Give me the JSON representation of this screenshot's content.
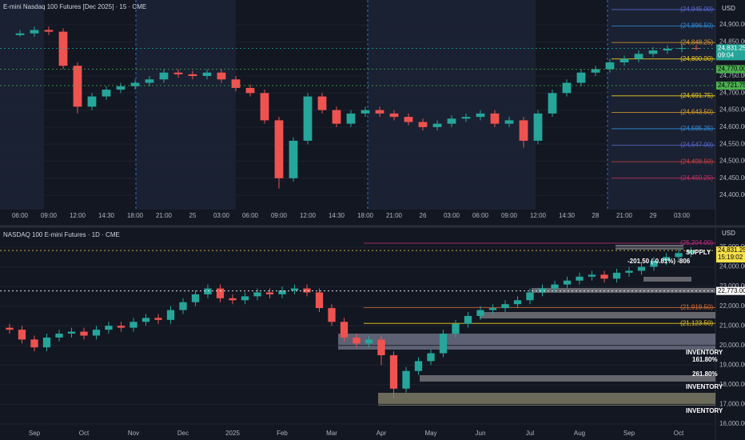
{
  "chart_data": [
    {
      "type": "candlestick",
      "title": "E-mini Nasdaq 100 Futures [Dec 2025] · 15 · CME",
      "currency": "USD",
      "categories": [
        "06:00",
        null,
        "09:00",
        null,
        "12:00",
        null,
        "14:30",
        null,
        "18:00",
        null,
        "21:00",
        null,
        "25",
        null,
        "03:00",
        null,
        "06:00",
        null,
        "09:00",
        null,
        "12:00",
        null,
        "14:30",
        null,
        "18:00",
        null,
        "21:00",
        null,
        "26",
        null,
        "03:00",
        null,
        "06:00",
        null,
        "09:00",
        null,
        "12:00",
        null,
        "14:30",
        null,
        "28",
        null,
        "21:00",
        null,
        "29",
        null,
        "03:00",
        null
      ],
      "open": [
        24870,
        24875,
        24885,
        24880,
        24780,
        24660,
        24690,
        24710,
        24720,
        24730,
        24740,
        24760,
        24755,
        24750,
        24760,
        24740,
        24715,
        24700,
        24620,
        24450,
        24560,
        24690,
        24650,
        24610,
        24640,
        24650,
        24640,
        24630,
        24615,
        24600,
        24610,
        24625,
        24630,
        24640,
        24610,
        24620,
        24560,
        24640,
        24700,
        24730,
        24760,
        24770,
        24790,
        24800,
        24815,
        24825,
        24830,
        24832
      ],
      "high": [
        24885,
        24895,
        24895,
        24890,
        24790,
        24700,
        24720,
        24730,
        24740,
        24750,
        24770,
        24770,
        24765,
        24770,
        24770,
        24750,
        24725,
        24710,
        24630,
        24570,
        24700,
        24700,
        24660,
        24650,
        24660,
        24660,
        24650,
        24640,
        24625,
        24620,
        24635,
        24640,
        24650,
        24650,
        24630,
        24630,
        24650,
        24710,
        24740,
        24770,
        24780,
        24800,
        24810,
        24825,
        24835,
        24840,
        24842,
        24842
      ],
      "low": [
        24865,
        24865,
        24870,
        24770,
        24640,
        24650,
        24680,
        24700,
        24710,
        24720,
        24730,
        24745,
        24740,
        24740,
        24730,
        24705,
        24690,
        24610,
        24420,
        24440,
        24550,
        24640,
        24600,
        24600,
        24630,
        24630,
        24620,
        24605,
        24590,
        24590,
        24600,
        24615,
        24620,
        24600,
        24600,
        24540,
        24550,
        24630,
        24690,
        24720,
        24750,
        24760,
        24780,
        24790,
        24805,
        24815,
        24820,
        24825
      ],
      "close": [
        24875,
        24885,
        24880,
        24780,
        24660,
        24690,
        24710,
        24720,
        24730,
        24740,
        24760,
        24755,
        24750,
        24760,
        24740,
        24715,
        24700,
        24620,
        24450,
        24560,
        24690,
        24650,
        24610,
        24640,
        24650,
        24640,
        24630,
        24615,
        24600,
        24610,
        24625,
        24630,
        24640,
        24610,
        24620,
        24560,
        24640,
        24700,
        24730,
        24760,
        24770,
        24790,
        24800,
        24815,
        24825,
        24830,
        24832,
        24831.25
      ],
      "up_color": "#26a69a",
      "down_color": "#ef5350",
      "ylim": [
        24358,
        24973
      ],
      "yticks": [
        {
          "value": 24400,
          "label": "24,400.00"
        },
        {
          "value": 24450,
          "label": "24,450.00"
        },
        {
          "value": 24500,
          "label": "24,500.00"
        },
        {
          "value": 24550,
          "label": "24,550.00"
        },
        {
          "value": 24600,
          "label": "24,600.00"
        },
        {
          "value": 24650,
          "label": "24,650.00"
        },
        {
          "value": 24700,
          "label": "24,700.00"
        },
        {
          "value": 24750,
          "label": "24,750.00"
        },
        {
          "value": 24850,
          "label": "24,850.00"
        },
        {
          "value": 24900,
          "label": "24,900.00"
        }
      ],
      "levels": [
        {
          "value": 24945,
          "label": "(24,945.00)",
          "color": "#5b6bd6"
        },
        {
          "value": 24896.5,
          "label": "(24,896.50)",
          "color": "#2f8fe0"
        },
        {
          "value": 24848.25,
          "label": "(24,848.25)",
          "color": "#e0a030"
        },
        {
          "value": 24800,
          "label": "(24,800.00)",
          "color": "#f0d020"
        },
        {
          "value": 24691.75,
          "label": "(24,691.75)",
          "color": "#f0d020"
        },
        {
          "value": 24643.5,
          "label": "(24,643.50)",
          "color": "#e0a030"
        },
        {
          "value": 24595.25,
          "label": "(24,595.25)",
          "color": "#2f8fe0"
        },
        {
          "value": 24547,
          "label": "(24,547.00)",
          "color": "#5b6bd6"
        },
        {
          "value": 24498.5,
          "label": "(24,498.50)",
          "color": "#d04040"
        },
        {
          "value": 24450.25,
          "label": "(24,450.25)",
          "color": "#c03060"
        }
      ],
      "badges": [
        {
          "value": 24831.25,
          "label": "24,831.25",
          "countdown": "09:04",
          "color": "#26a69a",
          "text_color": "#ffffff"
        },
        {
          "value": 24770,
          "label": "24,770.00",
          "color": "#4caf50",
          "text_color": "#000000"
        },
        {
          "value": 24721.75,
          "label": "24,721.75",
          "color": "#4caf50",
          "text_color": "#000000"
        }
      ],
      "grid": true
    },
    {
      "type": "candlestick",
      "title": "NASDAQ 100 E-mini Futures · 1D · CME",
      "currency": "USD",
      "categories": [
        null,
        null,
        "Sep",
        null,
        null,
        null,
        "Oct",
        null,
        null,
        null,
        "Nov",
        null,
        null,
        null,
        "Dec",
        null,
        null,
        null,
        "2025",
        null,
        null,
        null,
        "Feb",
        null,
        null,
        null,
        "Mar",
        null,
        null,
        null,
        "Apr",
        null,
        null,
        null,
        "May",
        null,
        null,
        null,
        "Jun",
        null,
        null,
        null,
        "Jul",
        null,
        null,
        null,
        "Aug",
        null,
        null,
        null,
        "Sep",
        null,
        null,
        null,
        "Oct",
        null
      ],
      "open": [
        20900,
        20800,
        20300,
        19900,
        20400,
        20600,
        20700,
        20500,
        20800,
        21000,
        20900,
        21200,
        21400,
        21300,
        21800,
        22200,
        22600,
        22900,
        22400,
        22300,
        22500,
        22700,
        22600,
        22800,
        22900,
        22700,
        21900,
        21200,
        20400,
        20100,
        20300,
        19500,
        17800,
        18700,
        19200,
        19600,
        20600,
        21100,
        21500,
        21800,
        21900,
        22100,
        22300,
        22700,
        22900,
        23100,
        23300,
        23500,
        23600,
        23400,
        23700,
        23800,
        24000,
        24300,
        24500,
        24700
      ],
      "high": [
        21100,
        21000,
        20500,
        20600,
        20800,
        20900,
        20900,
        21000,
        21200,
        21200,
        21400,
        21600,
        21600,
        22000,
        22400,
        22800,
        23100,
        23100,
        22600,
        22700,
        22900,
        22900,
        23000,
        23100,
        23100,
        22900,
        22100,
        21400,
        20600,
        20500,
        20500,
        19700,
        18900,
        19400,
        19800,
        20800,
        21300,
        21700,
        22000,
        22100,
        22300,
        22500,
        22900,
        23100,
        23300,
        23500,
        23700,
        23800,
        23800,
        23900,
        24000,
        24200,
        24500,
        24700,
        24900,
        25000
      ],
      "low": [
        20600,
        20100,
        19700,
        19700,
        20200,
        20400,
        20300,
        20300,
        20600,
        20700,
        20700,
        21000,
        21100,
        21100,
        21600,
        22000,
        22400,
        22200,
        22100,
        22100,
        22300,
        22400,
        22400,
        22600,
        22500,
        21700,
        21000,
        20200,
        19900,
        19900,
        19000,
        17300,
        17600,
        18500,
        19000,
        19400,
        20400,
        20900,
        21300,
        21600,
        21700,
        21900,
        22100,
        22500,
        22700,
        22900,
        23100,
        23300,
        23200,
        23200,
        23500,
        23600,
        23800,
        24100,
        24300,
        24500
      ],
      "close": [
        20800,
        20300,
        19900,
        20400,
        20600,
        20700,
        20500,
        20800,
        21000,
        20900,
        21200,
        21400,
        21300,
        21800,
        22200,
        22600,
        22900,
        22400,
        22300,
        22500,
        22700,
        22600,
        22800,
        22900,
        22700,
        21900,
        21200,
        20400,
        20100,
        20300,
        19500,
        17800,
        18700,
        19200,
        19600,
        20600,
        21100,
        21500,
        21800,
        21900,
        22100,
        22300,
        22700,
        22900,
        23100,
        23300,
        23500,
        23600,
        23400,
        23700,
        23800,
        24000,
        24300,
        24500,
        24700,
        24831.25
      ],
      "up_color": "#26a69a",
      "down_color": "#ef5350",
      "ylim": [
        15796,
        25936
      ],
      "yticks": [
        {
          "value": 16000,
          "label": "16,000.00"
        },
        {
          "value": 17000,
          "label": "17,000.00"
        },
        {
          "value": 18000,
          "label": "18,000.00"
        },
        {
          "value": 19000,
          "label": "19,000.00"
        },
        {
          "value": 20000,
          "label": "20,000.00"
        },
        {
          "value": 21000,
          "label": "21,000.00"
        },
        {
          "value": 22000,
          "label": "22,000.00"
        },
        {
          "value": 23000,
          "label": "23,000.00"
        },
        {
          "value": 24000,
          "label": "24,000.00"
        },
        {
          "value": 25000,
          "label": "25,000.00"
        }
      ],
      "levels": [
        {
          "value": 25204,
          "label": "(25,204.00)",
          "color": "#c03080"
        },
        {
          "value": 21919.5,
          "label": "(21,919.50)",
          "color": "#e07030"
        },
        {
          "value": 21123.5,
          "label": "(21,123.50)",
          "color": "#f0d020"
        }
      ],
      "badges": [
        {
          "value": 24831.25,
          "label": "24,831.25",
          "countdown": "15:19:02",
          "color": "#f5e04a",
          "text_color": "#000000"
        },
        {
          "value": 22773,
          "label": "22,773.00",
          "color": "#ffffff",
          "text_color": "#000000"
        }
      ],
      "annotations": [
        "SUPPLY",
        "-201.50 (-0.81%) -806",
        "INVENTORY",
        "161.80%",
        "261.80%",
        "INVENTORY",
        "INVENTORY"
      ],
      "grid": true
    }
  ]
}
